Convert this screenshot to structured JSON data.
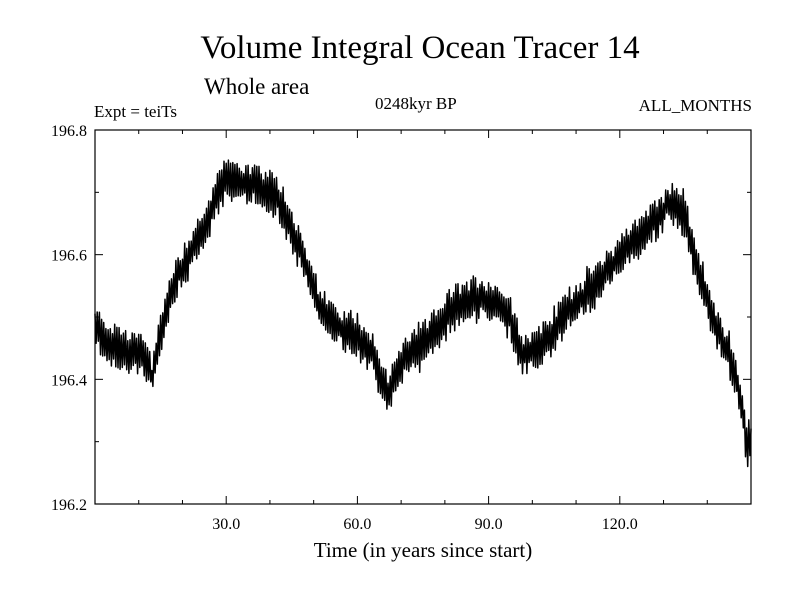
{
  "chart_data": {
    "type": "line",
    "title": "Volume Integral Ocean Tracer 14",
    "subtitle": "Whole area",
    "left_note": "Expt = teiTs",
    "center_note": "0248kyr BP",
    "right_note": "ALL_MONTHS",
    "xlabel": "Time (in years since start)",
    "ylabel": "",
    "xlim": [
      0,
      150
    ],
    "ylim": [
      196.2,
      196.8
    ],
    "xticks": [
      30,
      60,
      90,
      120
    ],
    "xtick_labels": [
      "30.0",
      "60.0",
      "90.0",
      "120.0"
    ],
    "yticks": [
      196.2,
      196.4,
      196.6,
      196.8
    ],
    "ytick_labels": [
      "196.2",
      "196.4",
      "196.6",
      "196.8"
    ],
    "series": [
      {
        "name": "Tracer 14",
        "color": "#000000",
        "envelope_x": [
          0,
          3,
          6,
          10,
          12,
          13,
          15,
          17,
          19,
          21,
          23,
          25,
          27,
          30,
          33,
          36,
          39,
          42,
          45,
          48,
          51,
          54,
          57,
          60,
          63,
          65,
          67,
          69,
          71,
          74,
          77,
          80,
          83,
          86,
          89,
          92,
          95,
          97,
          99,
          101,
          103,
          105,
          108,
          111,
          114,
          117,
          120,
          123,
          126,
          129,
          131,
          133,
          135,
          137,
          139,
          141,
          143,
          145,
          147,
          149,
          150
        ],
        "envelope_y": [
          196.48,
          196.46,
          196.45,
          196.44,
          196.43,
          196.4,
          196.47,
          196.53,
          196.57,
          196.59,
          196.62,
          196.64,
          196.68,
          196.72,
          196.72,
          196.71,
          196.7,
          196.69,
          196.64,
          196.59,
          196.52,
          196.49,
          196.48,
          196.47,
          196.45,
          196.41,
          196.37,
          196.41,
          196.44,
          196.45,
          196.47,
          196.5,
          196.52,
          196.53,
          196.53,
          196.52,
          196.5,
          196.45,
          196.44,
          196.45,
          196.46,
          196.48,
          196.51,
          196.53,
          196.55,
          196.57,
          196.6,
          196.62,
          196.64,
          196.66,
          196.68,
          196.68,
          196.66,
          196.6,
          196.55,
          196.5,
          196.47,
          196.44,
          196.39,
          196.3,
          196.3
        ],
        "oscillation_amplitude": 0.06,
        "samples_per_year": 4
      }
    ]
  }
}
